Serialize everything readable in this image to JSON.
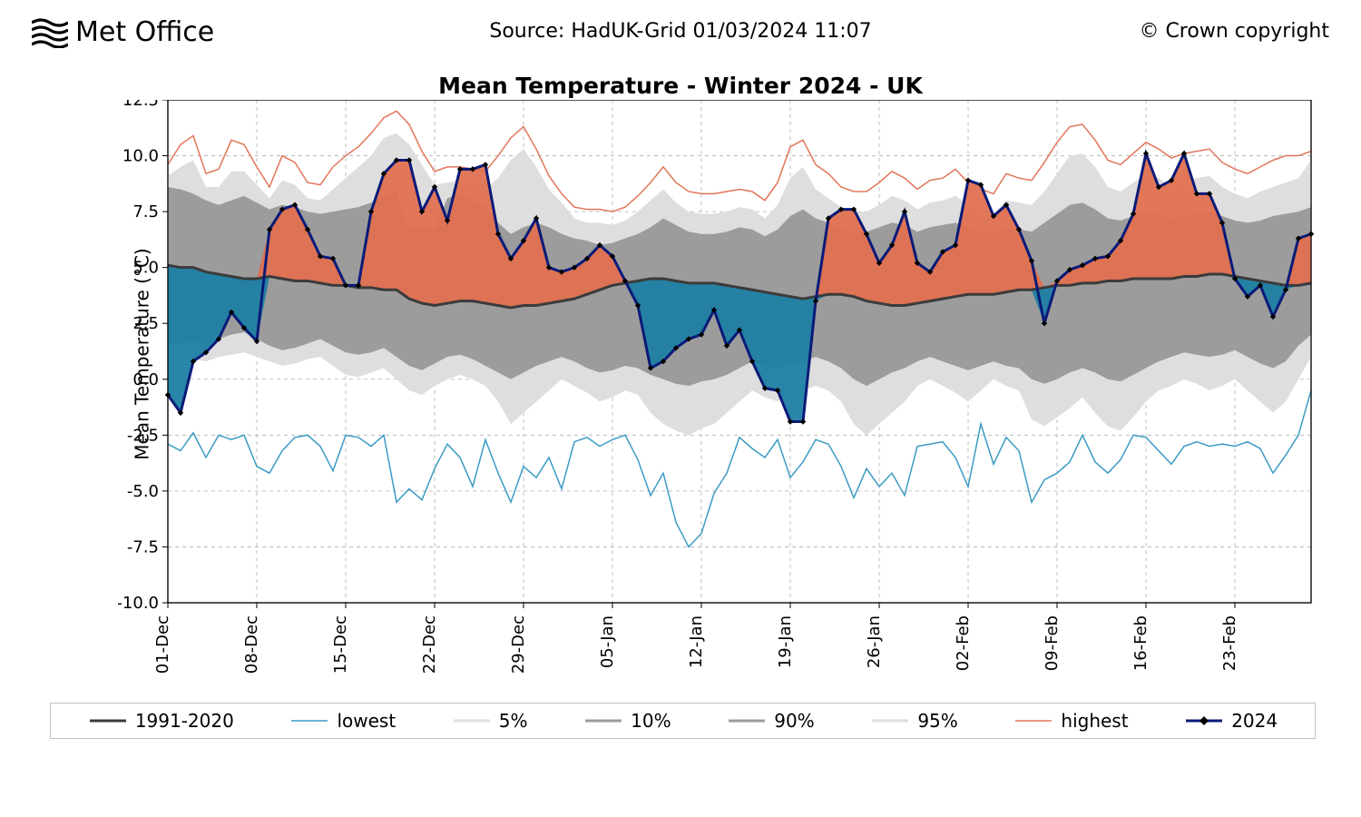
{
  "header": {
    "logo_text": "Met Office",
    "source": "Source: HadUK-Grid 01/03/2024 11:07",
    "copyright": "© Crown copyright"
  },
  "chart": {
    "type": "line-band",
    "title": "Mean Temperature - Winter 2024 - UK",
    "ylabel": "Mean Temperature (°C)",
    "ylim": [
      -10.0,
      12.5
    ],
    "ytick_step": 2.5,
    "yticks": [
      "-10.0",
      "-7.5",
      "-5.0",
      "-2.5",
      "0.0",
      "2.5",
      "5.0",
      "7.5",
      "10.0",
      "12.5"
    ],
    "n_days": 91,
    "xtick_positions": [
      0,
      7,
      14,
      21,
      28,
      35,
      42,
      49,
      56,
      63,
      70,
      77,
      84
    ],
    "xtick_labels": [
      "01-Dec",
      "08-Dec",
      "15-Dec",
      "22-Dec",
      "29-Dec",
      "05-Jan",
      "12-Jan",
      "19-Jan",
      "26-Jan",
      "02-Feb",
      "09-Feb",
      "16-Feb",
      "23-Feb"
    ],
    "colors": {
      "background": "#ffffff",
      "grid": "#b0b0b0",
      "axis": "#000000",
      "mean_1991_2020": "#3b3b3b",
      "lowest": "#3b9bc4",
      "highest": "#e0765a",
      "pct5_95": "#dedede",
      "pct10_90": "#9c9c9c",
      "series_2024": "#0a1a78",
      "series_2024_marker": "#000000",
      "area_above": "#e07050",
      "area_below": "#1d7fa3"
    },
    "line_widths": {
      "mean": 3.0,
      "lowest": 1.5,
      "highest": 1.5,
      "series_2024": 3.0,
      "grid": 1.0
    },
    "legend": {
      "items": [
        {
          "label": "1991-2020",
          "color": "#3b3b3b",
          "w": 3
        },
        {
          "label": "lowest",
          "color": "#3b9bc4",
          "w": 1.5
        },
        {
          "label": "5%",
          "color": "#dedede",
          "w": 3
        },
        {
          "label": "10%",
          "color": "#9c9c9c",
          "w": 3
        },
        {
          "label": "90%",
          "color": "#9c9c9c",
          "w": 3
        },
        {
          "label": "95%",
          "color": "#dedede",
          "w": 3
        },
        {
          "label": "highest",
          "color": "#e0765a",
          "w": 1.5
        },
        {
          "label": "2024",
          "color": "#0a1a78",
          "w": 3,
          "marker": true
        }
      ]
    },
    "series": {
      "mean_1991_2020": [
        5.1,
        5.0,
        5.0,
        4.8,
        4.7,
        4.6,
        4.5,
        4.5,
        4.6,
        4.5,
        4.4,
        4.4,
        4.3,
        4.2,
        4.2,
        4.1,
        4.1,
        4.0,
        4.0,
        3.6,
        3.4,
        3.3,
        3.4,
        3.5,
        3.5,
        3.4,
        3.3,
        3.2,
        3.3,
        3.3,
        3.4,
        3.5,
        3.6,
        3.8,
        4.0,
        4.2,
        4.3,
        4.4,
        4.5,
        4.5,
        4.4,
        4.3,
        4.3,
        4.3,
        4.2,
        4.1,
        4.0,
        3.9,
        3.8,
        3.7,
        3.6,
        3.7,
        3.8,
        3.8,
        3.7,
        3.5,
        3.4,
        3.3,
        3.3,
        3.4,
        3.5,
        3.6,
        3.7,
        3.8,
        3.8,
        3.8,
        3.9,
        4.0,
        4.0,
        4.1,
        4.2,
        4.2,
        4.3,
        4.3,
        4.4,
        4.4,
        4.5,
        4.5,
        4.5,
        4.5,
        4.6,
        4.6,
        4.7,
        4.7,
        4.6,
        4.5,
        4.4,
        4.3,
        4.2,
        4.2,
        4.3
      ],
      "lowest": [
        -2.9,
        -3.2,
        -2.4,
        -3.5,
        -2.5,
        -2.7,
        -2.5,
        -3.9,
        -4.2,
        -3.2,
        -2.6,
        -2.5,
        -3.0,
        -4.1,
        -2.5,
        -2.6,
        -3.0,
        -2.5,
        -5.5,
        -4.9,
        -5.4,
        -4.0,
        -2.9,
        -3.5,
        -4.8,
        -2.7,
        -4.2,
        -5.5,
        -3.9,
        -4.4,
        -3.5,
        -4.9,
        -2.8,
        -2.6,
        -3.0,
        -2.7,
        -2.5,
        -3.6,
        -5.2,
        -4.2,
        -6.4,
        -7.5,
        -6.9,
        -5.1,
        -4.2,
        -2.6,
        -3.1,
        -3.5,
        -2.7,
        -4.4,
        -3.7,
        -2.7,
        -2.9,
        -3.9,
        -5.3,
        -4.0,
        -4.8,
        -4.2,
        -5.2,
        -3.0,
        -2.9,
        -2.8,
        -3.5,
        -4.8,
        -2.0,
        -3.8,
        -2.6,
        -3.2,
        -5.5,
        -4.5,
        -4.2,
        -3.7,
        -2.5,
        -3.7,
        -4.2,
        -3.6,
        -2.5,
        -2.6,
        -3.2,
        -3.8,
        -3.0,
        -2.8,
        -3.0,
        -2.9,
        -3.0,
        -2.8,
        -3.1,
        -4.2,
        -3.4,
        -2.5,
        -0.5
      ],
      "highest": [
        9.6,
        10.5,
        10.9,
        9.2,
        9.4,
        10.7,
        10.5,
        9.5,
        8.6,
        10.0,
        9.7,
        8.8,
        8.7,
        9.5,
        10.0,
        10.4,
        11.0,
        11.7,
        12.0,
        11.4,
        10.2,
        9.3,
        9.5,
        9.5,
        9.4,
        9.3,
        10.0,
        10.8,
        11.3,
        10.3,
        9.1,
        8.3,
        7.7,
        7.6,
        7.6,
        7.5,
        7.7,
        8.2,
        8.8,
        9.5,
        8.8,
        8.4,
        8.3,
        8.3,
        8.4,
        8.5,
        8.4,
        8.0,
        8.8,
        10.4,
        10.7,
        9.6,
        9.2,
        8.6,
        8.4,
        8.4,
        8.8,
        9.3,
        9.0,
        8.5,
        8.9,
        9.0,
        9.4,
        8.8,
        8.5,
        8.3,
        9.2,
        9.0,
        8.9,
        9.7,
        10.6,
        11.3,
        11.4,
        10.7,
        9.8,
        9.6,
        10.1,
        10.6,
        10.3,
        9.9,
        10.1,
        10.2,
        10.3,
        9.7,
        9.4,
        9.2,
        9.5,
        9.8,
        10.0,
        10.0,
        10.2
      ],
      "p5": [
        0.7,
        0.8,
        0.9,
        0.8,
        1.0,
        1.1,
        1.2,
        1.0,
        0.8,
        0.6,
        0.7,
        0.9,
        1.0,
        0.6,
        0.2,
        0.1,
        0.3,
        0.5,
        0.0,
        -0.5,
        -0.7,
        -0.3,
        0.0,
        0.2,
        0.0,
        -0.3,
        -1.0,
        -2.0,
        -1.5,
        -1.0,
        -0.5,
        0.0,
        -0.3,
        -0.6,
        -1.0,
        -0.8,
        -0.5,
        -0.7,
        -1.5,
        -2.0,
        -2.3,
        -2.5,
        -2.2,
        -2.0,
        -1.5,
        -1.0,
        -0.5,
        -0.8,
        -1.0,
        -0.7,
        -0.5,
        -0.3,
        -0.5,
        -1.0,
        -2.0,
        -2.5,
        -2.0,
        -1.5,
        -1.0,
        -0.3,
        0.0,
        -0.3,
        -0.6,
        -1.0,
        -0.5,
        0.0,
        -0.3,
        -0.5,
        -1.8,
        -2.1,
        -1.7,
        -1.3,
        -0.8,
        -1.5,
        -2.1,
        -2.3,
        -1.7,
        -1.0,
        -0.5,
        -0.3,
        0.0,
        -0.2,
        -0.5,
        -0.3,
        0.0,
        -0.5,
        -1.0,
        -1.5,
        -1.0,
        0.0,
        1.0
      ],
      "p10": [
        1.5,
        1.6,
        1.7,
        1.5,
        1.8,
        2.0,
        2.1,
        1.8,
        1.5,
        1.3,
        1.4,
        1.6,
        1.8,
        1.5,
        1.2,
        1.1,
        1.2,
        1.4,
        1.0,
        0.6,
        0.4,
        0.7,
        1.0,
        1.1,
        0.9,
        0.6,
        0.3,
        0.0,
        0.3,
        0.6,
        0.8,
        1.0,
        0.8,
        0.5,
        0.3,
        0.4,
        0.6,
        0.5,
        0.2,
        0.0,
        -0.2,
        -0.3,
        -0.1,
        0.0,
        0.2,
        0.5,
        0.8,
        0.6,
        0.5,
        0.7,
        0.8,
        1.0,
        0.8,
        0.5,
        0.0,
        -0.3,
        0.0,
        0.3,
        0.5,
        0.8,
        1.0,
        0.8,
        0.6,
        0.4,
        0.6,
        0.8,
        0.6,
        0.5,
        0.0,
        -0.2,
        0.0,
        0.3,
        0.5,
        0.3,
        0.0,
        -0.1,
        0.2,
        0.5,
        0.8,
        1.0,
        1.2,
        1.1,
        1.0,
        1.1,
        1.3,
        1.0,
        0.7,
        0.5,
        0.8,
        1.5,
        2.0
      ],
      "p90": [
        8.6,
        8.5,
        8.3,
        8.0,
        7.8,
        8.0,
        8.2,
        7.9,
        7.6,
        7.8,
        7.7,
        7.5,
        7.4,
        7.5,
        7.6,
        7.7,
        7.9,
        8.2,
        8.4,
        6.8,
        6.9,
        6.7,
        8.1,
        8.3,
        8.0,
        7.7,
        7.0,
        6.5,
        6.8,
        7.0,
        6.8,
        6.5,
        6.3,
        6.2,
        6.0,
        6.1,
        6.3,
        6.5,
        6.8,
        7.2,
        6.9,
        6.6,
        6.5,
        6.5,
        6.6,
        6.8,
        6.7,
        6.4,
        6.7,
        7.3,
        7.6,
        7.2,
        7.0,
        6.7,
        6.6,
        6.6,
        6.8,
        7.0,
        6.9,
        6.6,
        6.8,
        6.9,
        7.0,
        6.8,
        6.6,
        6.5,
        6.8,
        6.7,
        6.6,
        7.0,
        7.4,
        7.8,
        7.9,
        7.6,
        7.2,
        7.1,
        7.3,
        7.5,
        7.4,
        7.2,
        7.3,
        7.4,
        7.5,
        7.3,
        7.1,
        7.0,
        7.1,
        7.3,
        7.4,
        7.5,
        7.7
      ],
      "p95": [
        9.1,
        9.5,
        9.8,
        8.6,
        8.6,
        9.3,
        9.3,
        8.7,
        8.1,
        8.9,
        8.7,
        8.1,
        8.0,
        8.5,
        9.0,
        9.5,
        10.0,
        10.8,
        11.0,
        10.5,
        9.6,
        8.7,
        8.8,
        8.9,
        8.8,
        8.5,
        9.0,
        9.8,
        10.3,
        9.5,
        8.5,
        7.9,
        7.2,
        7.0,
        7.0,
        6.9,
        7.1,
        7.5,
        8.0,
        8.5,
        7.9,
        7.5,
        7.4,
        7.4,
        7.5,
        7.7,
        7.6,
        7.2,
        7.8,
        9.0,
        9.5,
        8.5,
        8.1,
        7.7,
        7.5,
        7.5,
        7.8,
        8.2,
        8.0,
        7.6,
        7.9,
        8.0,
        8.2,
        7.8,
        7.6,
        7.4,
        8.0,
        7.9,
        7.8,
        8.4,
        9.2,
        10.0,
        10.1,
        9.5,
        8.6,
        8.4,
        8.8,
        9.2,
        9.0,
        8.6,
        8.8,
        9.0,
        9.1,
        8.6,
        8.3,
        8.1,
        8.4,
        8.6,
        8.8,
        9.0,
        9.8
      ],
      "y2024": [
        -0.7,
        -1.5,
        0.8,
        1.2,
        1.8,
        3.0,
        2.3,
        1.7,
        6.7,
        7.6,
        7.8,
        6.7,
        5.5,
        5.4,
        4.2,
        4.2,
        7.5,
        9.2,
        9.8,
        9.8,
        7.5,
        8.6,
        7.1,
        9.4,
        9.4,
        9.6,
        6.5,
        5.4,
        6.2,
        7.2,
        5.0,
        4.8,
        5.0,
        5.4,
        6.0,
        5.5,
        4.4,
        3.3,
        0.5,
        0.8,
        1.4,
        1.8,
        2.0,
        3.1,
        1.5,
        2.2,
        0.8,
        -0.4,
        -0.5,
        -1.9,
        -1.9,
        3.5,
        7.2,
        7.6,
        7.6,
        6.5,
        5.2,
        6.0,
        7.5,
        5.2,
        4.8,
        5.7,
        6.0,
        8.9,
        8.7,
        7.3,
        7.8,
        6.7,
        5.3,
        2.5,
        4.4,
        4.9,
        5.1,
        5.4,
        5.5,
        6.2,
        7.4,
        10.1,
        8.6,
        8.9,
        10.1,
        8.3,
        8.3,
        7.0,
        4.5,
        3.7,
        4.2,
        2.8,
        4.0,
        6.3,
        6.5
      ]
    }
  }
}
